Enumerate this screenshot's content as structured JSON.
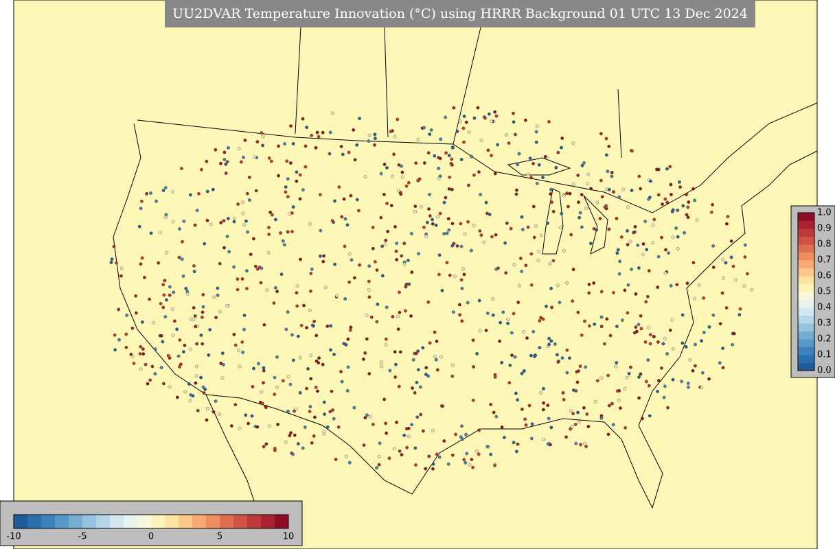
{
  "title": "UU2DVAR Temperature Innovation (°C) using HRRR Background 01 UTC 13 Dec 2024",
  "bottom_colorbar": {
    "ticks": [
      "-10",
      "-5",
      "0",
      "5",
      "10"
    ]
  },
  "side_colorbar": {
    "ticks": [
      "0.0",
      "0.1",
      "0.2",
      "0.3",
      "0.4",
      "0.5",
      "0.6",
      "0.7",
      "0.8",
      "0.9",
      "1.0"
    ]
  }
}
